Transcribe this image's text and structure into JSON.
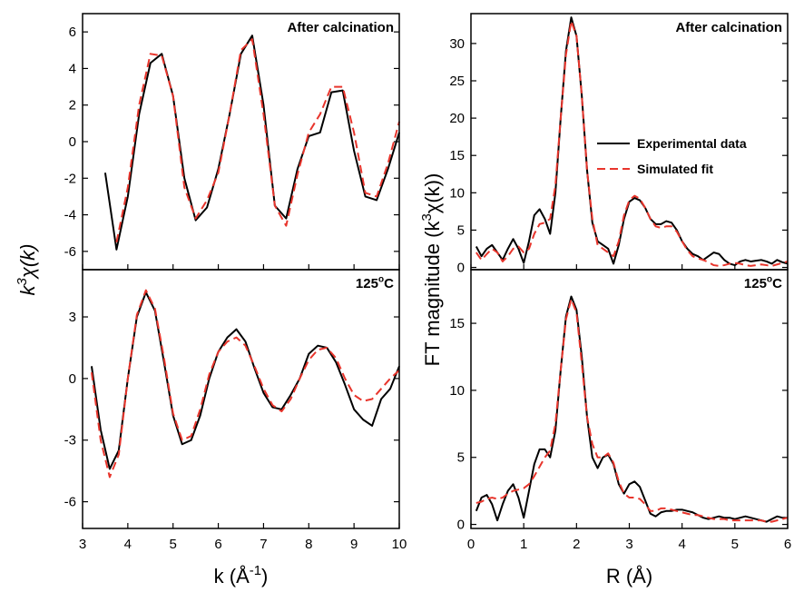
{
  "chart_data": [
    {
      "type": "line",
      "annotation": {
        "parts": [
          {
            "text": "After calcination"
          }
        ],
        "color": "#e8352c"
      },
      "y_label": [
        {
          "text": "k"
        },
        {
          "sup": "3"
        },
        {
          "text": "χ(k)"
        }
      ],
      "xlim": [
        3,
        10
      ],
      "xticks": [
        3,
        4,
        5,
        6,
        7,
        8,
        9,
        10
      ],
      "show_xtick_labels": false,
      "ylim": [
        -7,
        7
      ],
      "yticks": [
        -6,
        -4,
        -2,
        0,
        2,
        4,
        6
      ],
      "x": [
        3.5,
        3.75,
        4.0,
        4.25,
        4.5,
        4.75,
        5.0,
        5.25,
        5.5,
        5.75,
        6.0,
        6.25,
        6.5,
        6.75,
        7.0,
        7.25,
        7.5,
        7.75,
        8.0,
        8.25,
        8.5,
        8.75,
        9.0,
        9.25,
        9.5,
        9.75,
        10.0
      ],
      "series": [
        {
          "name": "Experimental data",
          "color": "#000000",
          "linestyle": "solid",
          "values": [
            -1.7,
            -5.9,
            -3.0,
            1.5,
            4.3,
            4.8,
            2.5,
            -2.0,
            -4.3,
            -3.6,
            -1.5,
            1.5,
            4.8,
            5.8,
            2.0,
            -3.5,
            -4.2,
            -1.5,
            0.3,
            0.5,
            2.7,
            2.8,
            -0.5,
            -3.0,
            -3.2,
            -1.5,
            0.5
          ]
        },
        {
          "name": "Simulated fit",
          "color": "#e8352c",
          "linestyle": "dashed",
          "values": [
            null,
            -5.5,
            -2.5,
            2.0,
            4.8,
            4.7,
            2.5,
            -2.5,
            -4.2,
            -3.2,
            -1.7,
            1.5,
            5.0,
            5.6,
            1.5,
            -3.5,
            -4.6,
            -1.8,
            0.5,
            1.5,
            3.0,
            3.0,
            0.5,
            -2.8,
            -3.0,
            -1.2,
            1.1
          ]
        }
      ]
    },
    {
      "type": "line",
      "annotation": {
        "parts": [
          {
            "text": "125"
          },
          {
            "sup": "o"
          },
          {
            "text": "C"
          }
        ],
        "color": "#e8352c"
      },
      "x_label": [
        {
          "text": "k (Å"
        },
        {
          "sup": "-1"
        },
        {
          "text": ")"
        }
      ],
      "xlim": [
        3,
        10
      ],
      "xticks": [
        3,
        4,
        5,
        6,
        7,
        8,
        9,
        10
      ],
      "ylim": [
        -7.3,
        5.3
      ],
      "yticks": [
        -6,
        -3,
        0,
        3
      ],
      "x": [
        3.2,
        3.4,
        3.6,
        3.8,
        4.0,
        4.2,
        4.4,
        4.6,
        4.8,
        5.0,
        5.2,
        5.4,
        5.6,
        5.8,
        6.0,
        6.2,
        6.4,
        6.6,
        6.8,
        7.0,
        7.2,
        7.4,
        7.6,
        7.8,
        8.0,
        8.2,
        8.4,
        8.6,
        8.8,
        9.0,
        9.2,
        9.4,
        9.6,
        9.8,
        10.0
      ],
      "series": [
        {
          "name": "Experimental data",
          "color": "#000000",
          "linestyle": "solid",
          "values": [
            0.6,
            -2.5,
            -4.4,
            -3.5,
            0.0,
            3.0,
            4.2,
            3.3,
            0.8,
            -1.8,
            -3.2,
            -3.0,
            -1.8,
            0.0,
            1.3,
            2.0,
            2.4,
            1.8,
            0.5,
            -0.7,
            -1.4,
            -1.5,
            -0.8,
            0.0,
            1.2,
            1.6,
            1.5,
            0.8,
            -0.3,
            -1.5,
            -2.0,
            -2.3,
            -1.0,
            -0.5,
            0.6
          ]
        },
        {
          "name": "Simulated fit",
          "color": "#e8352c",
          "linestyle": "dashed",
          "values": [
            0.3,
            -3.0,
            -4.8,
            -3.7,
            0.0,
            3.1,
            4.3,
            3.4,
            1.0,
            -1.7,
            -3.0,
            -2.8,
            -1.5,
            0.2,
            1.3,
            1.8,
            2.0,
            1.6,
            0.6,
            -0.5,
            -1.3,
            -1.6,
            -1.0,
            0.0,
            0.9,
            1.4,
            1.5,
            1.0,
            0.0,
            -0.8,
            -1.1,
            -1.0,
            -0.5,
            0.0,
            0.4
          ]
        }
      ]
    },
    {
      "type": "line",
      "annotation": {
        "parts": [
          {
            "text": "After calcination"
          }
        ],
        "color": "#e8352c"
      },
      "y_label": [
        {
          "text": "FT magnitude (k"
        },
        {
          "sup": "3"
        },
        {
          "text": "χ(k))"
        }
      ],
      "legend": "right",
      "xlim": [
        0,
        6
      ],
      "xticks": [
        0,
        1,
        2,
        3,
        4,
        5,
        6
      ],
      "show_xtick_labels": false,
      "ylim": [
        -0.3,
        34
      ],
      "yticks": [
        0,
        5,
        10,
        15,
        20,
        25,
        30
      ],
      "x": [
        0.1,
        0.2,
        0.3,
        0.4,
        0.5,
        0.6,
        0.7,
        0.8,
        0.9,
        1.0,
        1.1,
        1.2,
        1.3,
        1.4,
        1.5,
        1.6,
        1.7,
        1.8,
        1.9,
        2.0,
        2.1,
        2.2,
        2.3,
        2.4,
        2.5,
        2.6,
        2.7,
        2.8,
        2.9,
        3.0,
        3.1,
        3.2,
        3.3,
        3.4,
        3.5,
        3.6,
        3.7,
        3.8,
        3.9,
        4.0,
        4.1,
        4.2,
        4.3,
        4.4,
        4.5,
        4.6,
        4.7,
        4.8,
        4.9,
        5.0,
        5.1,
        5.2,
        5.3,
        5.4,
        5.5,
        5.6,
        5.7,
        5.8,
        5.9,
        6.0
      ],
      "series": [
        {
          "name": "Experimental data",
          "color": "#000000",
          "linestyle": "solid",
          "values": [
            2.8,
            1.5,
            2.5,
            3.0,
            2.0,
            1.0,
            2.5,
            3.8,
            2.5,
            0.6,
            3.5,
            7.0,
            7.8,
            6.5,
            4.5,
            10,
            20,
            29,
            33.5,
            31,
            23,
            13,
            6,
            3.5,
            3.0,
            2.5,
            0.5,
            3.0,
            6.5,
            8.8,
            9.3,
            9.0,
            8.0,
            6.5,
            5.8,
            5.8,
            6.2,
            6.0,
            5.0,
            3.5,
            2.5,
            1.8,
            1.5,
            1.0,
            1.5,
            2.0,
            1.8,
            1.0,
            0.5,
            0.3,
            0.8,
            1.0,
            0.8,
            0.9,
            1.0,
            0.8,
            0.5,
            1.0,
            0.7,
            0.5
          ]
        },
        {
          "name": "Simulated fit",
          "color": "#e8352c",
          "linestyle": "dashed",
          "values": [
            2.0,
            1.0,
            1.8,
            2.5,
            2.0,
            0.8,
            1.5,
            2.5,
            2.8,
            2.0,
            2.5,
            4.5,
            5.8,
            6.0,
            6.5,
            11,
            20,
            28.5,
            33,
            31,
            23,
            13,
            6.5,
            3.0,
            2.5,
            2.0,
            1.5,
            3.5,
            7.0,
            9.0,
            9.6,
            9.2,
            8.0,
            6.5,
            5.5,
            5.3,
            5.5,
            5.5,
            4.8,
            3.5,
            2.3,
            1.5,
            1.2,
            1.0,
            0.7,
            0.3,
            0.2,
            0.3,
            0.5,
            0.6,
            0.5,
            0.3,
            0.2,
            0.3,
            0.4,
            0.3,
            0.2,
            0.4,
            0.6,
            0.8
          ]
        }
      ]
    },
    {
      "type": "line",
      "annotation": {
        "parts": [
          {
            "text": "125"
          },
          {
            "sup": "o"
          },
          {
            "text": "C"
          }
        ],
        "color": "#e8352c"
      },
      "x_label": [
        {
          "text": "R (Å)"
        }
      ],
      "xlim": [
        0,
        6
      ],
      "xticks": [
        0,
        1,
        2,
        3,
        4,
        5,
        6
      ],
      "ylim": [
        -0.3,
        19
      ],
      "yticks": [
        0,
        5,
        10,
        15
      ],
      "x": [
        0.1,
        0.2,
        0.3,
        0.4,
        0.5,
        0.6,
        0.7,
        0.8,
        0.9,
        1.0,
        1.1,
        1.2,
        1.3,
        1.4,
        1.5,
        1.6,
        1.7,
        1.8,
        1.9,
        2.0,
        2.1,
        2.2,
        2.3,
        2.4,
        2.5,
        2.6,
        2.7,
        2.8,
        2.9,
        3.0,
        3.1,
        3.2,
        3.3,
        3.4,
        3.5,
        3.6,
        3.7,
        3.8,
        3.9,
        4.0,
        4.1,
        4.2,
        4.3,
        4.4,
        4.5,
        4.6,
        4.7,
        4.8,
        4.9,
        5.0,
        5.1,
        5.2,
        5.3,
        5.4,
        5.5,
        5.6,
        5.7,
        5.8,
        5.9,
        6.0
      ],
      "series": [
        {
          "name": "Experimental data",
          "color": "#000000",
          "linestyle": "solid",
          "values": [
            1.0,
            2.0,
            2.2,
            1.5,
            0.3,
            1.5,
            2.5,
            3.0,
            2.0,
            0.5,
            2.5,
            4.5,
            5.6,
            5.6,
            5.0,
            7.0,
            11.5,
            15.5,
            17.0,
            16.0,
            12.5,
            8.0,
            5.0,
            4.2,
            5.0,
            5.2,
            4.5,
            3.0,
            2.3,
            3.0,
            3.2,
            2.8,
            1.8,
            0.8,
            0.6,
            0.9,
            1.0,
            1.0,
            1.1,
            1.1,
            1.0,
            0.9,
            0.7,
            0.5,
            0.4,
            0.5,
            0.6,
            0.5,
            0.5,
            0.4,
            0.5,
            0.6,
            0.5,
            0.4,
            0.3,
            0.2,
            0.4,
            0.6,
            0.5,
            0.5
          ]
        },
        {
          "name": "Simulated fit",
          "color": "#e8352c",
          "linestyle": "dashed",
          "values": [
            1.6,
            1.7,
            1.9,
            2.0,
            1.9,
            2.0,
            2.3,
            2.5,
            2.6,
            2.7,
            3.0,
            3.6,
            4.3,
            5.0,
            5.5,
            7.5,
            11.5,
            15.3,
            16.8,
            15.8,
            12.0,
            8.0,
            6.0,
            5.0,
            5.0,
            5.3,
            4.6,
            3.2,
            2.3,
            2.0,
            2.0,
            1.9,
            1.5,
            1.0,
            1.0,
            1.2,
            1.2,
            1.1,
            1.0,
            0.9,
            0.8,
            0.7,
            0.7,
            0.6,
            0.5,
            0.4,
            0.4,
            0.4,
            0.3,
            0.3,
            0.3,
            0.3,
            0.3,
            0.3,
            0.3,
            0.2,
            0.2,
            0.3,
            0.4,
            0.5
          ]
        }
      ]
    }
  ]
}
